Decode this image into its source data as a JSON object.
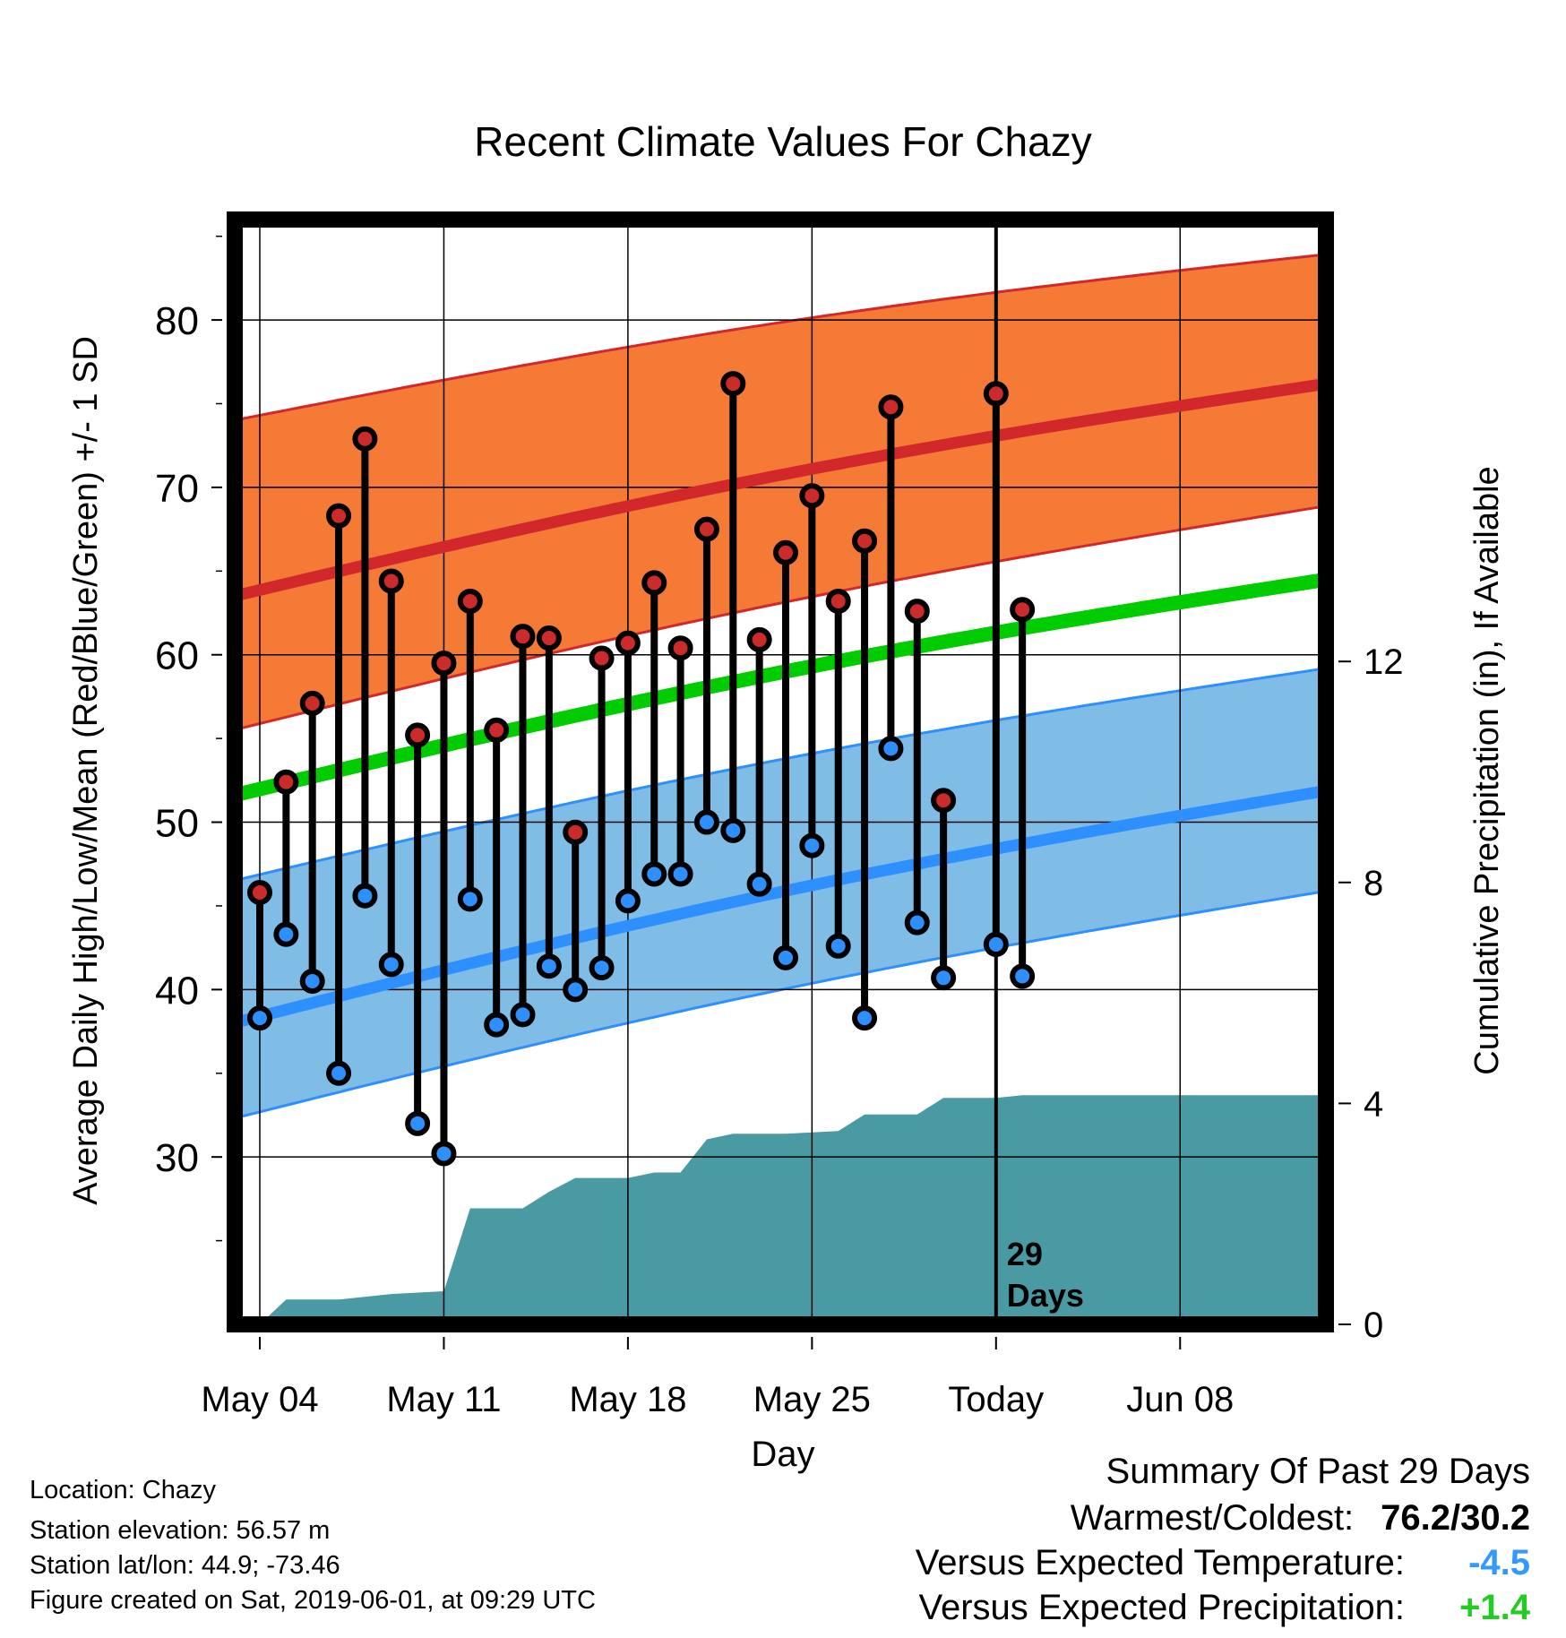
{
  "chart_data": {
    "type": "line",
    "title": "Recent Climate Values For Chazy",
    "xlabel": "Day",
    "ylabel": "Average Daily High/Low/Mean (Red/Blue/Green) +/- 1 SD",
    "y2label": "Cumulative Precipitation (in), If Available",
    "x_tick_labels": [
      "May 04",
      "May 11",
      "May 18",
      "May 25",
      "Today",
      "Jun 08"
    ],
    "y_ticks": [
      30,
      40,
      50,
      60,
      70,
      80
    ],
    "y2_ticks": [
      0,
      4,
      8,
      12
    ],
    "ylim": [
      20,
      86
    ],
    "y2lim": [
      0,
      20
    ],
    "today_label": "29\nDays",
    "colors": {
      "high_band": "#f47a35",
      "high_mean": "#d2282c",
      "low_band": "#80bde6",
      "low_mean": "#2e8fff",
      "overall_mean": "#00cc00",
      "precip": "#4a9aa3",
      "high_marker": "#cc2b2b",
      "low_marker": "#2e8fff"
    },
    "normals": {
      "day_range": [
        -1,
        41
      ],
      "high_mean": [
        63.5,
        76.3
      ],
      "high_upper": [
        74.0,
        84.0
      ],
      "high_lower": [
        55.5,
        69.0
      ],
      "low_mean": [
        38.0,
        52.0
      ],
      "low_upper": [
        46.5,
        59.3
      ],
      "low_lower": [
        32.3,
        46.0
      ],
      "overall_mean": [
        51.6,
        64.6
      ]
    },
    "observed": [
      {
        "day": 0,
        "high": 45.8,
        "low": 38.3
      },
      {
        "day": 1,
        "high": 52.4,
        "low": 43.3
      },
      {
        "day": 2,
        "high": 57.1,
        "low": 40.5
      },
      {
        "day": 3,
        "high": 68.3,
        "low": 35.0
      },
      {
        "day": 4,
        "high": 72.9,
        "low": 45.6
      },
      {
        "day": 5,
        "high": 64.4,
        "low": 41.5
      },
      {
        "day": 6,
        "high": 55.2,
        "low": 32.0
      },
      {
        "day": 7,
        "high": 59.5,
        "low": 30.2
      },
      {
        "day": 8,
        "high": 63.2,
        "low": 45.4
      },
      {
        "day": 9,
        "high": 55.5,
        "low": 37.9
      },
      {
        "day": 10,
        "high": 61.1,
        "low": 38.5
      },
      {
        "day": 11,
        "high": 61.0,
        "low": 41.4
      },
      {
        "day": 12,
        "high": 49.4,
        "low": 40.0
      },
      {
        "day": 13,
        "high": 59.8,
        "low": 41.3
      },
      {
        "day": 14,
        "high": 60.7,
        "low": 45.3
      },
      {
        "day": 15,
        "high": 64.3,
        "low": 46.9
      },
      {
        "day": 16,
        "high": 60.4,
        "low": 46.9
      },
      {
        "day": 17,
        "high": 67.5,
        "low": 50.0
      },
      {
        "day": 18,
        "high": 76.2,
        "low": 49.5
      },
      {
        "day": 19,
        "high": 60.9,
        "low": 46.3
      },
      {
        "day": 20,
        "high": 66.1,
        "low": 41.9
      },
      {
        "day": 21,
        "high": 69.5,
        "low": 48.6
      },
      {
        "day": 22,
        "high": 63.2,
        "low": 42.6
      },
      {
        "day": 23,
        "high": 66.8,
        "low": 38.3
      },
      {
        "day": 24,
        "high": 74.8,
        "low": 54.4
      },
      {
        "day": 25,
        "high": 62.6,
        "low": 44.0
      },
      {
        "day": 26,
        "high": 51.3,
        "low": 40.7
      },
      {
        "day": 28,
        "high": 75.6,
        "low": 42.7
      },
      {
        "day": 29,
        "high": 62.7,
        "low": 40.8
      }
    ],
    "precip_cumulative": [
      {
        "day": 0,
        "value": 0.0
      },
      {
        "day": 1,
        "value": 0.45
      },
      {
        "day": 3,
        "value": 0.45
      },
      {
        "day": 5,
        "value": 0.55
      },
      {
        "day": 7,
        "value": 0.6
      },
      {
        "day": 8,
        "value": 2.1
      },
      {
        "day": 10,
        "value": 2.1
      },
      {
        "day": 11,
        "value": 2.4
      },
      {
        "day": 12,
        "value": 2.65
      },
      {
        "day": 14,
        "value": 2.65
      },
      {
        "day": 15,
        "value": 2.75
      },
      {
        "day": 16,
        "value": 2.75
      },
      {
        "day": 17,
        "value": 3.35
      },
      {
        "day": 18,
        "value": 3.45
      },
      {
        "day": 20,
        "value": 3.45
      },
      {
        "day": 22,
        "value": 3.5
      },
      {
        "day": 23,
        "value": 3.8
      },
      {
        "day": 25,
        "value": 3.8
      },
      {
        "day": 26,
        "value": 4.1
      },
      {
        "day": 28,
        "value": 4.1
      },
      {
        "day": 29,
        "value": 4.15
      },
      {
        "day": 41,
        "value": 4.15
      }
    ]
  },
  "info": {
    "location": "Location: Chazy",
    "elevation": "Station elevation: 56.57 m",
    "latlon": "Station lat/lon: 44.9; -73.46",
    "created": "Figure created on Sat, 2019-06-01, at 09:29 UTC"
  },
  "summary": {
    "title": "Summary Of Past 29 Days",
    "warmest_coldest_label": "Warmest/Coldest:",
    "warmest_coldest_value": "76.2/30.2",
    "temp_label": "Versus Expected Temperature:",
    "temp_value": "-4.5",
    "temp_color": "#3399ff",
    "precip_label": "Versus Expected Precipitation:",
    "precip_value": "+1.4",
    "precip_color": "#22cc22"
  }
}
